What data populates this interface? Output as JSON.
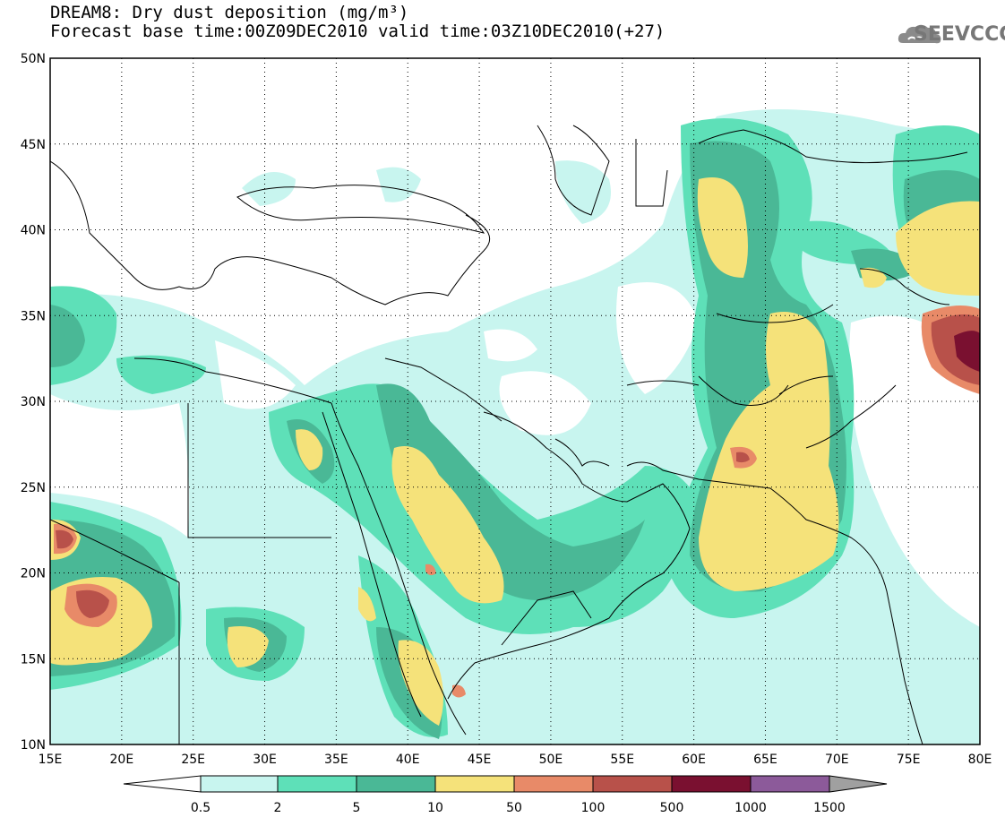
{
  "title": {
    "line1": "DREAM8: Dry dust deposition (mg/m³)",
    "line2": "Forecast base time:00Z09DEC2010 valid time:03Z10DEC2010(+27)"
  },
  "logo": {
    "text": "SEEVCCC"
  },
  "map": {
    "lon_range": [
      15,
      80
    ],
    "lat_range": [
      10,
      50
    ],
    "lon_ticks": [
      "15E",
      "20E",
      "25E",
      "30E",
      "35E",
      "40E",
      "45E",
      "50E",
      "55E",
      "60E",
      "65E",
      "70E",
      "75E",
      "80E"
    ],
    "lat_ticks": [
      "10N",
      "15N",
      "20N",
      "25N",
      "30N",
      "35N",
      "40N",
      "45N",
      "50N"
    ],
    "gridlines": "dotted"
  },
  "legend": {
    "unit": "mg/m³",
    "bins": [
      {
        "label": "0.5",
        "color": "#c8f5ef"
      },
      {
        "label": "2",
        "color": "#5ee0b8"
      },
      {
        "label": "5",
        "color": "#4ab896"
      },
      {
        "label": "10",
        "color": "#f5e27a"
      },
      {
        "label": "50",
        "color": "#e88a68"
      },
      {
        "label": "100",
        "color": "#b8514a"
      },
      {
        "label": "500",
        "color": "#7a1030"
      },
      {
        "label": "1000",
        "color": "#8c5a9a"
      },
      {
        "label": "1500",
        "color": "#a0a0a0"
      }
    ]
  },
  "colors": {
    "lt": "#c8f5ef",
    "md": "#5ee0b8",
    "dk": "#4ab896",
    "yl": "#f5e27a",
    "or": "#e88a68",
    "rd": "#b8514a",
    "mr": "#7a1030"
  }
}
